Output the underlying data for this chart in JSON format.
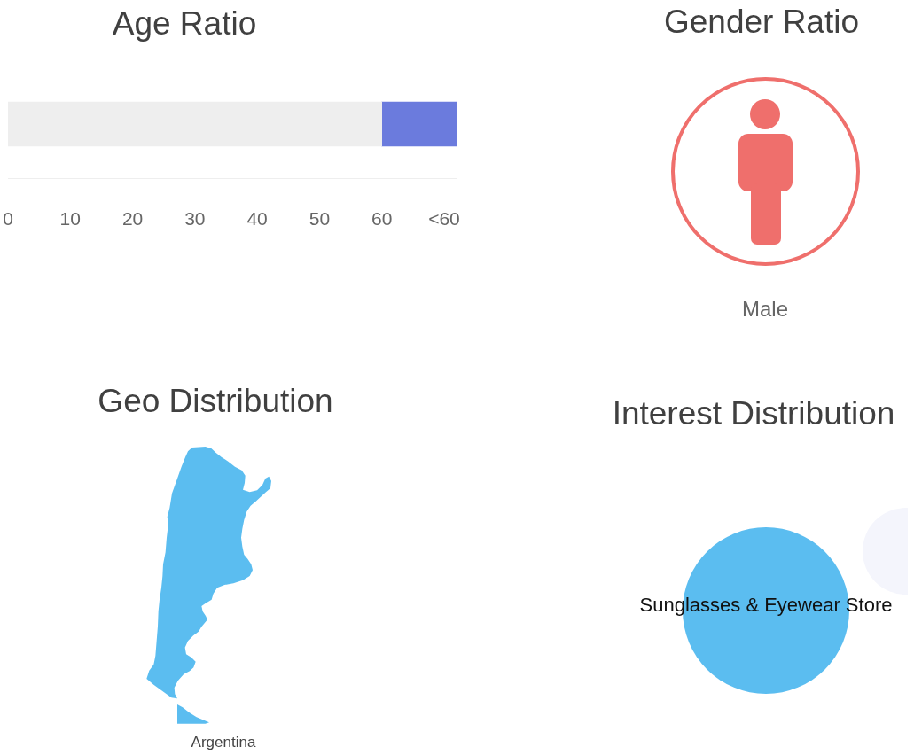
{
  "chart_data": [
    {
      "type": "bar",
      "title": "Age Ratio",
      "orientation": "horizontal",
      "stacked": true,
      "categories": [
        null
      ],
      "series": [
        {
          "color": "#eeeeee",
          "values": [
            60
          ]
        },
        {
          "color": "#6b7bdd",
          "values": [
            12
          ]
        }
      ],
      "xlim": [
        0,
        72
      ],
      "xticks": [
        0,
        10,
        20,
        30,
        40,
        50,
        60,
        {
          "value": 70,
          "label": "<60"
        }
      ],
      "tick_labels": "x"
    },
    {
      "type": "other",
      "title": "Gender Ratio",
      "annotations": [
        "Male"
      ]
    },
    {
      "type": "other",
      "title": "Geo Distribution",
      "annotations": [
        "Argentina"
      ]
    },
    {
      "type": "other",
      "title": "Interest Distribution",
      "annotations": [
        "Sunglasses & Eyewear Store"
      ]
    }
  ]
}
